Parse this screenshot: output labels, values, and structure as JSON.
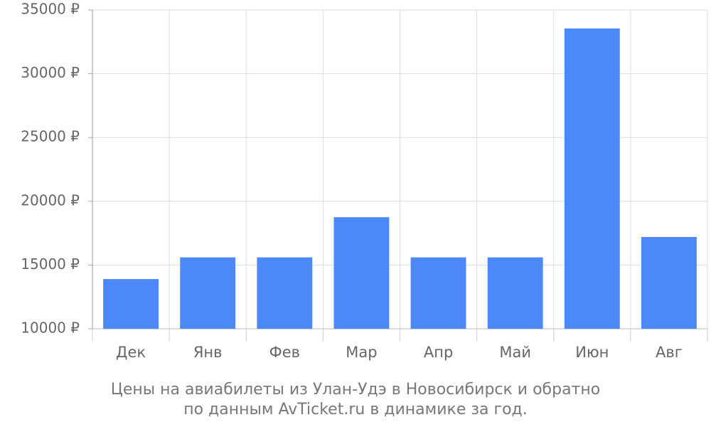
{
  "chart_data": {
    "type": "bar",
    "caption": [
      "Цены на авиабилеты из Улан-Удэ в Новосибирск и обратно",
      "по данным AvTicket.ru в динамике за год."
    ],
    "categories": [
      "Дек",
      "Янв",
      "Фев",
      "Мар",
      "Апр",
      "Май",
      "Июн",
      "Авг"
    ],
    "values": [
      13900,
      15600,
      15600,
      18750,
      15600,
      15600,
      33550,
      17200
    ],
    "color": "#4d88f9",
    "ylim": [
      10000,
      35000
    ],
    "yticks": [
      {
        "value": 10000,
        "label": "10000 ₽"
      },
      {
        "value": 15000,
        "label": "15000 ₽"
      },
      {
        "value": 20000,
        "label": "20000 ₽"
      },
      {
        "value": 25000,
        "label": "25000 ₽"
      },
      {
        "value": 30000,
        "label": "30000 ₽"
      },
      {
        "value": 35000,
        "label": "35000 ₽"
      }
    ],
    "grid": true
  }
}
